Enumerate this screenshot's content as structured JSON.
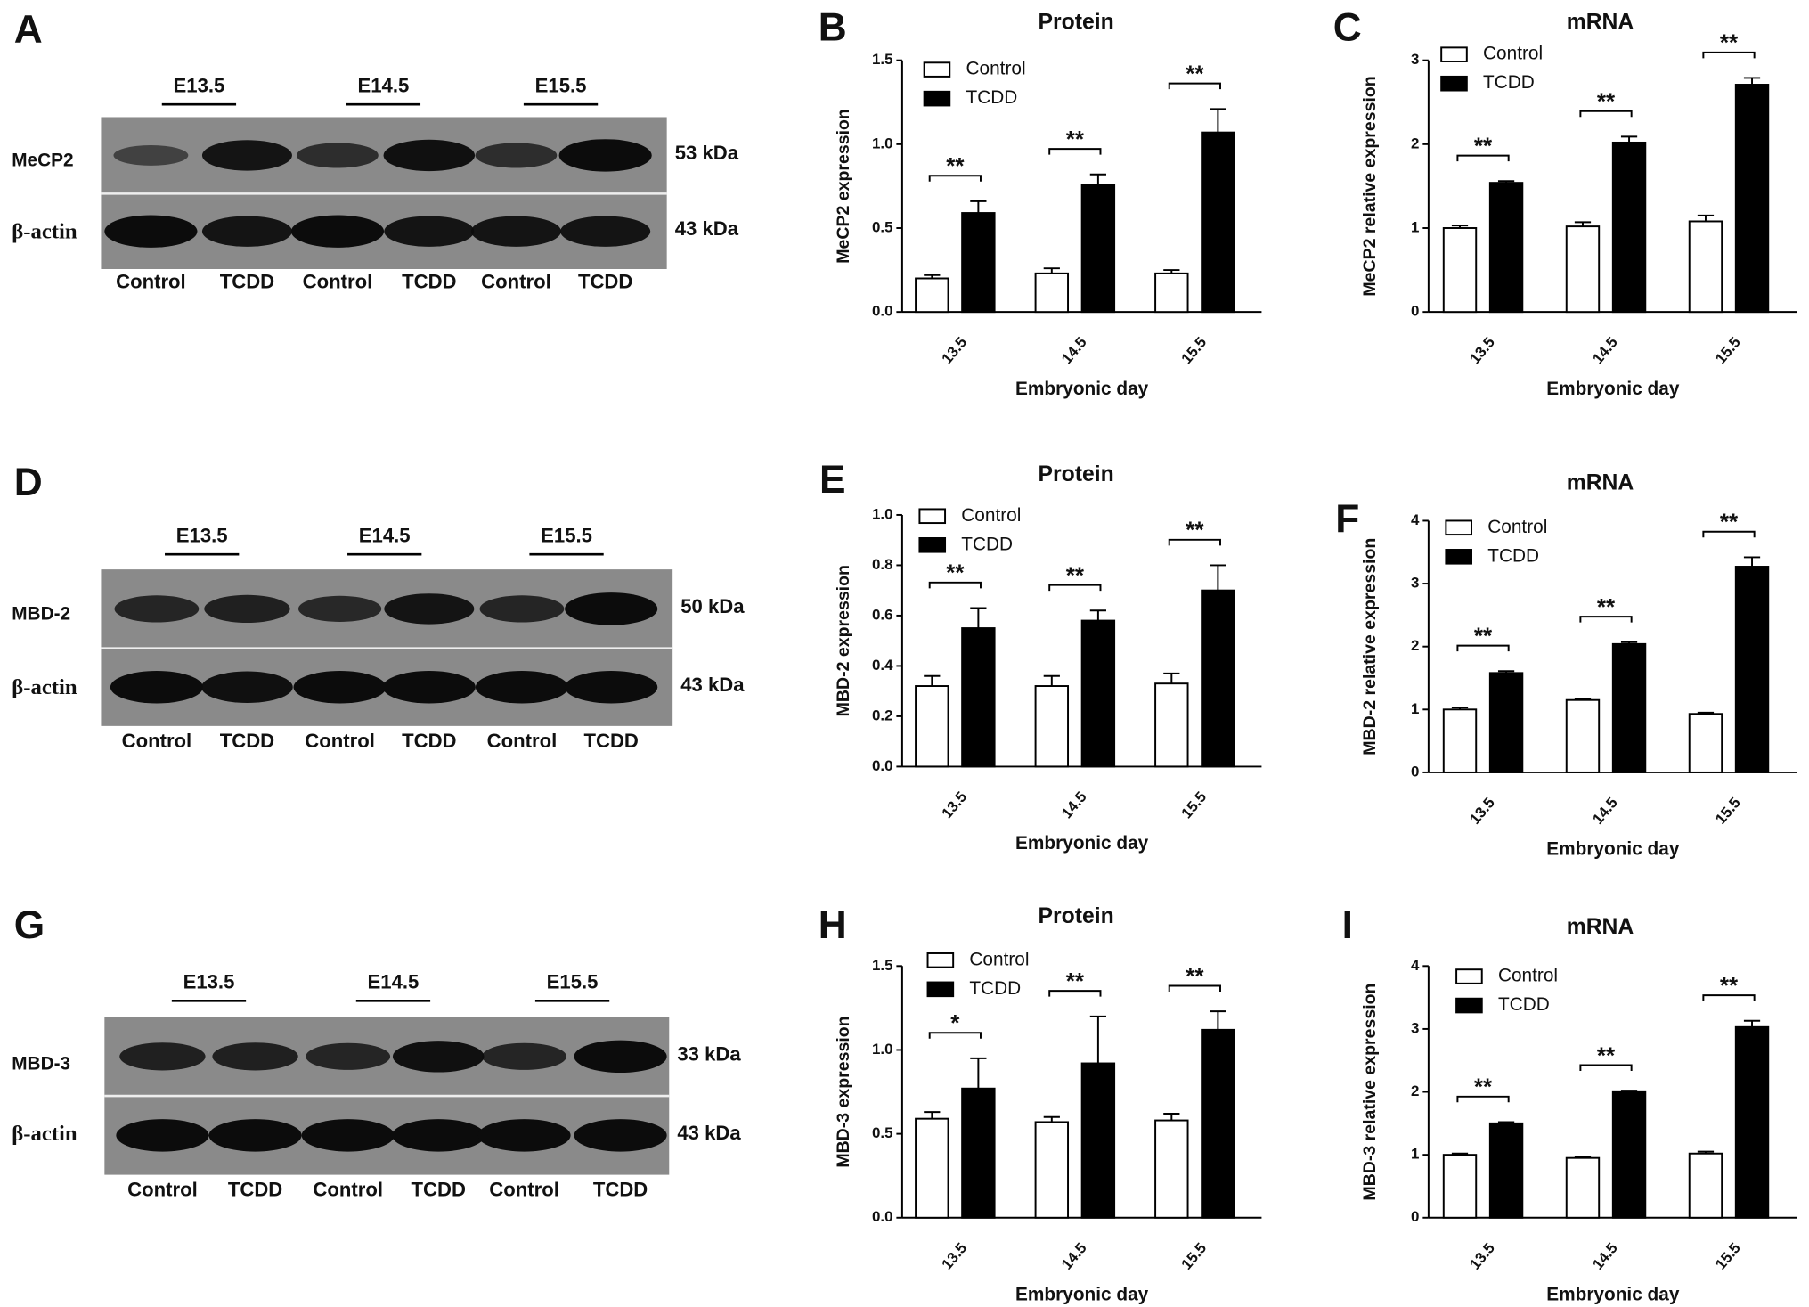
{
  "blots": [
    {
      "panel_label": "A",
      "groups": [
        "E13.5",
        "E14.5",
        "E15.5"
      ],
      "lanes": [
        "Control",
        "TCDD",
        "Control",
        "TCDD",
        "Control",
        "TCDD"
      ],
      "rows": [
        {
          "label": "MeCP2",
          "size": "53 kDa"
        },
        {
          "label": "β-actin",
          "size": "43 kDa"
        }
      ]
    },
    {
      "panel_label": "D",
      "groups": [
        "E13.5",
        "E14.5",
        "E15.5"
      ],
      "lanes": [
        "Control",
        "TCDD",
        "Control",
        "TCDD",
        "Control",
        "TCDD"
      ],
      "rows": [
        {
          "label": "MBD-2",
          "size": "50 kDa"
        },
        {
          "label": "β-actin",
          "size": "43 kDa"
        }
      ]
    },
    {
      "panel_label": "G",
      "groups": [
        "E13.5",
        "E14.5",
        "E15.5"
      ],
      "lanes": [
        "Control",
        "TCDD",
        "Control",
        "TCDD",
        "Control",
        "TCDD"
      ],
      "rows": [
        {
          "label": "MBD-3",
          "size": "33 kDa"
        },
        {
          "label": "β-actin",
          "size": "43 kDa"
        }
      ]
    }
  ],
  "chart_data": [
    {
      "type": "bar",
      "panel_label": "B",
      "title": "Protein",
      "ylabel": "MeCP2 expression",
      "xlabel": "Embryonic day",
      "categories": [
        "13.5",
        "14.5",
        "15.5"
      ],
      "series": [
        {
          "name": "Control",
          "color": "#ffffff",
          "values": [
            0.2,
            0.23,
            0.23
          ],
          "errors": [
            0.02,
            0.03,
            0.02
          ]
        },
        {
          "name": "TCDD",
          "color": "#000000",
          "values": [
            0.59,
            0.76,
            1.07
          ],
          "errors": [
            0.07,
            0.06,
            0.14
          ]
        }
      ],
      "significance": [
        "**",
        "**",
        "**"
      ],
      "ylim": [
        0,
        1.5
      ],
      "yticks": [
        {
          "value": 0,
          "label": "0.0"
        },
        0.5,
        {
          "value": 1,
          "label": "1.0"
        },
        1.5
      ]
    },
    {
      "type": "bar",
      "panel_label": "C",
      "title": "mRNA",
      "ylabel": "MeCP2 relative expression",
      "xlabel": "Embryonic day",
      "categories": [
        "13.5",
        "14.5",
        "15.5"
      ],
      "series": [
        {
          "name": "Control",
          "color": "#ffffff",
          "values": [
            1.0,
            1.02,
            1.08
          ],
          "errors": [
            0.03,
            0.05,
            0.07
          ]
        },
        {
          "name": "TCDD",
          "color": "#000000",
          "values": [
            1.54,
            2.02,
            2.71
          ],
          "errors": [
            0.02,
            0.07,
            0.08
          ]
        }
      ],
      "significance": [
        "**",
        "**",
        "**"
      ],
      "ylim": [
        0,
        3
      ],
      "yticks": [
        0,
        1,
        2,
        3
      ]
    },
    {
      "type": "bar",
      "panel_label": "E",
      "title": "Protein",
      "ylabel": "MBD-2 expression",
      "xlabel": "Embryonic day",
      "categories": [
        "13.5",
        "14.5",
        "15.5"
      ],
      "series": [
        {
          "name": "Control",
          "color": "#ffffff",
          "values": [
            0.32,
            0.32,
            0.33
          ],
          "errors": [
            0.04,
            0.04,
            0.04
          ]
        },
        {
          "name": "TCDD",
          "color": "#000000",
          "values": [
            0.55,
            0.58,
            0.7
          ],
          "errors": [
            0.08,
            0.04,
            0.1
          ]
        }
      ],
      "significance": [
        "**",
        "**",
        "**"
      ],
      "ylim": [
        0,
        1
      ],
      "yticks": [
        {
          "value": 0,
          "label": "0.0"
        },
        0.2,
        0.4,
        0.6,
        0.8,
        {
          "value": 1,
          "label": "1.0"
        }
      ]
    },
    {
      "type": "bar",
      "panel_label": "F",
      "title": "mRNA",
      "ylabel": "MBD-2 relative expression",
      "xlabel": "Embryonic day",
      "categories": [
        "13.5",
        "14.5",
        "15.5"
      ],
      "series": [
        {
          "name": "Control",
          "color": "#ffffff",
          "values": [
            1.0,
            1.15,
            0.93
          ],
          "errors": [
            0.03,
            0.02,
            0.02
          ]
        },
        {
          "name": "TCDD",
          "color": "#000000",
          "values": [
            1.58,
            2.04,
            3.27
          ],
          "errors": [
            0.03,
            0.03,
            0.15
          ]
        }
      ],
      "significance": [
        "**",
        "**",
        "**"
      ],
      "ylim": [
        0,
        4
      ],
      "yticks": [
        0,
        1,
        2,
        3,
        4
      ]
    },
    {
      "type": "bar",
      "panel_label": "H",
      "title": "Protein",
      "ylabel": "MBD-3 expression",
      "xlabel": "Embryonic day",
      "categories": [
        "13.5",
        "14.5",
        "15.5"
      ],
      "series": [
        {
          "name": "Control",
          "color": "#ffffff",
          "values": [
            0.59,
            0.57,
            0.58
          ],
          "errors": [
            0.04,
            0.03,
            0.04
          ]
        },
        {
          "name": "TCDD",
          "color": "#000000",
          "values": [
            0.77,
            0.92,
            1.12
          ],
          "errors": [
            0.18,
            0.28,
            0.11
          ]
        }
      ],
      "significance": [
        "*",
        "**",
        "**"
      ],
      "ylim": [
        0,
        1.5
      ],
      "yticks": [
        {
          "value": 0,
          "label": "0.0"
        },
        0.5,
        {
          "value": 1,
          "label": "1.0"
        },
        1.5
      ]
    },
    {
      "type": "bar",
      "panel_label": "I",
      "title": "mRNA",
      "ylabel": "MBD-3 relative expression",
      "xlabel": "Embryonic day",
      "categories": [
        "13.5",
        "14.5",
        "15.5"
      ],
      "series": [
        {
          "name": "Control",
          "color": "#ffffff",
          "values": [
            1.0,
            0.95,
            1.02
          ],
          "errors": [
            0.02,
            0.01,
            0.03
          ]
        },
        {
          "name": "TCDD",
          "color": "#000000",
          "values": [
            1.5,
            2.01,
            3.03
          ],
          "errors": [
            0.02,
            0.01,
            0.1
          ]
        }
      ],
      "significance": [
        "**",
        "**",
        "**"
      ],
      "ylim": [
        0,
        4
      ],
      "yticks": [
        0,
        1,
        2,
        3,
        4
      ]
    }
  ]
}
